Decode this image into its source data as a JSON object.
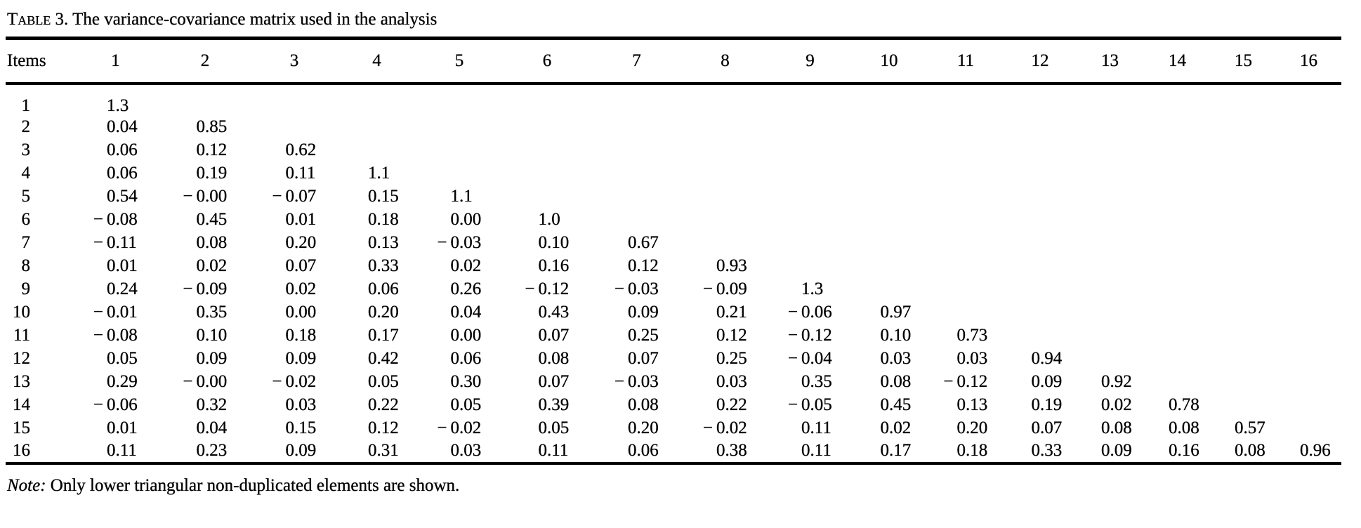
{
  "caption": {
    "label": "Table 3.",
    "text": "The variance-covariance matrix used in the analysis"
  },
  "table": {
    "columns": [
      "Items",
      "1",
      "2",
      "3",
      "4",
      "5",
      "6",
      "7",
      "8",
      "9",
      "10",
      "11",
      "12",
      "13",
      "14",
      "15",
      "16"
    ],
    "rows": [
      {
        "item": "1",
        "values": [
          "1.3"
        ]
      },
      {
        "item": "2",
        "values": [
          "0.04",
          "0.85"
        ]
      },
      {
        "item": "3",
        "values": [
          "0.06",
          "0.12",
          "0.62"
        ]
      },
      {
        "item": "4",
        "values": [
          "0.06",
          "0.19",
          "0.11",
          "1.1"
        ]
      },
      {
        "item": "5",
        "values": [
          "0.54",
          "−0.00",
          "−0.07",
          "0.15",
          "1.1"
        ]
      },
      {
        "item": "6",
        "values": [
          "−0.08",
          "0.45",
          "0.01",
          "0.18",
          "0.00",
          "1.0"
        ]
      },
      {
        "item": "7",
        "values": [
          "−0.11",
          "0.08",
          "0.20",
          "0.13",
          "−0.03",
          "0.10",
          "0.67"
        ]
      },
      {
        "item": "8",
        "values": [
          "0.01",
          "0.02",
          "0.07",
          "0.33",
          "0.02",
          "0.16",
          "0.12",
          "0.93"
        ]
      },
      {
        "item": "9",
        "values": [
          "0.24",
          "−0.09",
          "0.02",
          "0.06",
          "0.26",
          "−0.12",
          "−0.03",
          "−0.09",
          "1.3"
        ]
      },
      {
        "item": "10",
        "values": [
          "−0.01",
          "0.35",
          "0.00",
          "0.20",
          "0.04",
          "0.43",
          "0.09",
          "0.21",
          "−0.06",
          "0.97"
        ]
      },
      {
        "item": "11",
        "values": [
          "−0.08",
          "0.10",
          "0.18",
          "0.17",
          "0.00",
          "0.07",
          "0.25",
          "0.12",
          "−0.12",
          "0.10",
          "0.73"
        ]
      },
      {
        "item": "12",
        "values": [
          "0.05",
          "0.09",
          "0.09",
          "0.42",
          "0.06",
          "0.08",
          "0.07",
          "0.25",
          "−0.04",
          "0.03",
          "0.03",
          "0.94"
        ]
      },
      {
        "item": "13",
        "values": [
          "0.29",
          "−0.00",
          "−0.02",
          "0.05",
          "0.30",
          "0.07",
          "−0.03",
          "0.03",
          "0.35",
          "0.08",
          "−0.12",
          "0.09",
          "0.92"
        ]
      },
      {
        "item": "14",
        "values": [
          "−0.06",
          "0.32",
          "0.03",
          "0.22",
          "0.05",
          "0.39",
          "0.08",
          "0.22",
          "−0.05",
          "0.45",
          "0.13",
          "0.19",
          "0.02",
          "0.78"
        ]
      },
      {
        "item": "15",
        "values": [
          "0.01",
          "0.04",
          "0.15",
          "0.12",
          "−0.02",
          "0.05",
          "0.20",
          "−0.02",
          "0.11",
          "0.02",
          "0.20",
          "0.07",
          "0.08",
          "0.08",
          "0.57"
        ]
      },
      {
        "item": "16",
        "values": [
          "0.11",
          "0.23",
          "0.09",
          "0.31",
          "0.03",
          "0.11",
          "0.06",
          "0.38",
          "0.11",
          "0.17",
          "0.18",
          "0.33",
          "0.09",
          "0.16",
          "0.08",
          "0.96"
        ]
      }
    ]
  },
  "note": {
    "label": "Note:",
    "text": "Only lower triangular non-duplicated elements are shown."
  }
}
